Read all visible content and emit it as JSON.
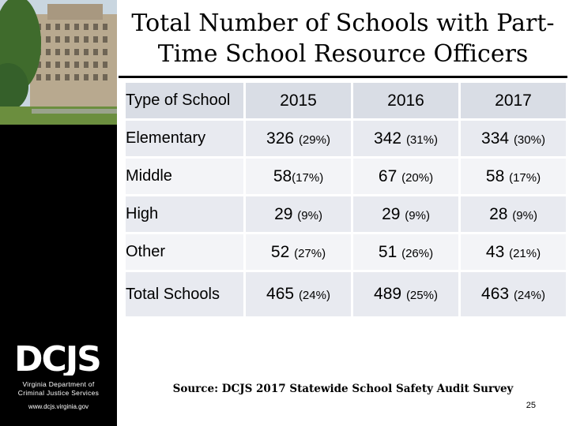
{
  "title": "Total Number of Schools with Part-Time School Resource Officers",
  "table": {
    "headers": [
      "Type of School",
      "2015",
      "2016",
      "2017"
    ],
    "rows": [
      {
        "label": "Elementary",
        "cells": [
          {
            "n": "326",
            "p": "(29%)"
          },
          {
            "n": "342",
            "p": "(31%)"
          },
          {
            "n": "334",
            "p": "(30%)"
          }
        ]
      },
      {
        "label": "Middle",
        "cells": [
          {
            "n": "58",
            "p": "(17%)"
          },
          {
            "n": "67",
            "p": "(20%)"
          },
          {
            "n": "58",
            "p": "(17%)"
          }
        ]
      },
      {
        "label": "High",
        "cells": [
          {
            "n": "29",
            "p": "(9%)"
          },
          {
            "n": "29",
            "p": "(9%)"
          },
          {
            "n": "28",
            "p": "(9%)"
          }
        ]
      },
      {
        "label": "Other",
        "cells": [
          {
            "n": "52",
            "p": "(27%)"
          },
          {
            "n": "51",
            "p": "(26%)"
          },
          {
            "n": "43",
            "p": "(21%)"
          }
        ]
      },
      {
        "label": "Total Schools",
        "cells": [
          {
            "n": "465",
            "p": "(24%)"
          },
          {
            "n": "489",
            "p": "(25%)"
          },
          {
            "n": "463",
            "p": "(24%)"
          }
        ]
      }
    ]
  },
  "source": "Source: DCJS 2017 Statewide School Safety Audit Survey",
  "page_number": "25",
  "sidebar": {
    "logo_text": "DCJS",
    "agency_line1": "Virginia Department of",
    "agency_line2": "Criminal Justice Services",
    "url": "www.dcjs.virginia.gov"
  },
  "colors": {
    "header_row": "#d9dde5",
    "row_dark": "#e8eaf0",
    "row_light": "#f3f4f7",
    "sidebar": "#000000"
  }
}
